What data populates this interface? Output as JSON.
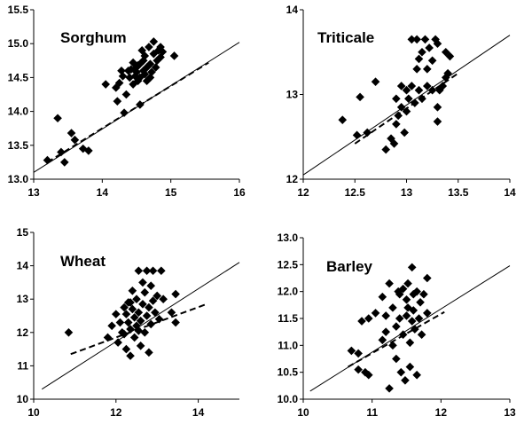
{
  "chart_data": [
    {
      "type": "scatter",
      "title": "Sorghum",
      "xlim": [
        13,
        16
      ],
      "ylim": [
        13.0,
        15.5
      ],
      "xticks": [
        "13",
        "14",
        "15",
        "16"
      ],
      "yticks": [
        "13.0",
        "13.5",
        "14.0",
        "14.5",
        "15.0",
        "15.5"
      ],
      "points": [
        [
          13.2,
          13.28
        ],
        [
          13.35,
          13.9
        ],
        [
          13.4,
          13.4
        ],
        [
          13.45,
          13.25
        ],
        [
          13.55,
          13.68
        ],
        [
          13.6,
          13.58
        ],
        [
          13.72,
          13.45
        ],
        [
          13.8,
          13.42
        ],
        [
          14.05,
          14.4
        ],
        [
          14.2,
          14.35
        ],
        [
          14.22,
          14.15
        ],
        [
          14.25,
          14.42
        ],
        [
          14.28,
          14.6
        ],
        [
          14.3,
          14.52
        ],
        [
          14.32,
          13.98
        ],
        [
          14.35,
          14.25
        ],
        [
          14.38,
          14.6
        ],
        [
          14.4,
          14.5
        ],
        [
          14.42,
          14.62
        ],
        [
          14.45,
          14.72
        ],
        [
          14.45,
          14.4
        ],
        [
          14.48,
          14.52
        ],
        [
          14.5,
          14.58
        ],
        [
          14.5,
          14.65
        ],
        [
          14.52,
          14.45
        ],
        [
          14.55,
          14.7
        ],
        [
          14.55,
          14.5
        ],
        [
          14.55,
          14.1
        ],
        [
          14.58,
          14.9
        ],
        [
          14.6,
          14.75
        ],
        [
          14.6,
          14.6
        ],
        [
          14.62,
          14.55
        ],
        [
          14.62,
          14.82
        ],
        [
          14.65,
          14.65
        ],
        [
          14.65,
          14.45
        ],
        [
          14.68,
          14.95
        ],
        [
          14.7,
          14.7
        ],
        [
          14.7,
          14.5
        ],
        [
          14.72,
          14.58
        ],
        [
          14.75,
          14.85
        ],
        [
          14.75,
          15.03
        ],
        [
          14.78,
          14.65
        ],
        [
          14.8,
          14.75
        ],
        [
          14.82,
          14.9
        ],
        [
          14.85,
          14.95
        ],
        [
          14.85,
          14.8
        ],
        [
          14.88,
          14.88
        ],
        [
          15.05,
          14.82
        ],
        [
          14.52,
          14.68
        ]
      ],
      "regression_line": [
        [
          13.0,
          13.1
        ],
        [
          16.0,
          15.02
        ]
      ],
      "fit_line": [
        [
          13.2,
          13.25
        ],
        [
          15.55,
          14.72
        ]
      ]
    },
    {
      "type": "scatter",
      "title": "Triticale",
      "xlim": [
        12,
        14
      ],
      "ylim": [
        12,
        14
      ],
      "xticks": [
        "12",
        "12.5",
        "13",
        "13.5",
        "14"
      ],
      "yticks": [
        "12",
        "13",
        "14"
      ],
      "points": [
        [
          12.38,
          12.7
        ],
        [
          12.52,
          12.52
        ],
        [
          12.55,
          12.97
        ],
        [
          12.62,
          12.55
        ],
        [
          12.7,
          13.15
        ],
        [
          12.8,
          12.35
        ],
        [
          12.85,
          12.48
        ],
        [
          12.88,
          12.42
        ],
        [
          12.9,
          12.65
        ],
        [
          12.9,
          12.95
        ],
        [
          12.92,
          12.75
        ],
        [
          12.95,
          13.1
        ],
        [
          12.95,
          12.85
        ],
        [
          12.98,
          12.55
        ],
        [
          13.0,
          13.05
        ],
        [
          13.0,
          12.8
        ],
        [
          13.02,
          12.95
        ],
        [
          13.05,
          13.1
        ],
        [
          13.05,
          13.65
        ],
        [
          13.08,
          12.9
        ],
        [
          13.1,
          13.65
        ],
        [
          13.1,
          13.3
        ],
        [
          13.12,
          13.05
        ],
        [
          13.15,
          13.5
        ],
        [
          13.15,
          12.95
        ],
        [
          13.18,
          13.65
        ],
        [
          13.2,
          13.1
        ],
        [
          13.2,
          13.3
        ],
        [
          13.22,
          13.55
        ],
        [
          13.25,
          13.4
        ],
        [
          13.25,
          13.05
        ],
        [
          13.28,
          13.65
        ],
        [
          13.3,
          13.6
        ],
        [
          13.3,
          12.85
        ],
        [
          13.32,
          13.05
        ],
        [
          13.35,
          13.1
        ],
        [
          13.38,
          13.5
        ],
        [
          13.38,
          13.2
        ],
        [
          13.4,
          13.25
        ],
        [
          13.42,
          13.45
        ],
        [
          13.3,
          12.68
        ],
        [
          13.12,
          13.42
        ]
      ],
      "regression_line": [
        [
          12.0,
          12.05
        ],
        [
          14.0,
          13.7
        ]
      ],
      "fit_line": [
        [
          12.5,
          12.42
        ],
        [
          13.5,
          13.25
        ]
      ]
    },
    {
      "type": "scatter",
      "title": "Wheat",
      "xlim": [
        10,
        15
      ],
      "ylim": [
        10,
        15
      ],
      "xticks": [
        "10",
        "12",
        "14"
      ],
      "yticks": [
        "10",
        "11",
        "12",
        "13",
        "14",
        "15"
      ],
      "points": [
        [
          10.85,
          12.0
        ],
        [
          11.8,
          11.85
        ],
        [
          11.9,
          12.2
        ],
        [
          12.0,
          12.55
        ],
        [
          12.05,
          11.7
        ],
        [
          12.1,
          12.3
        ],
        [
          12.15,
          12.0
        ],
        [
          12.2,
          12.75
        ],
        [
          12.2,
          11.95
        ],
        [
          12.25,
          12.55
        ],
        [
          12.25,
          11.5
        ],
        [
          12.3,
          12.3
        ],
        [
          12.3,
          12.9
        ],
        [
          12.35,
          12.1
        ],
        [
          12.35,
          11.3
        ],
        [
          12.4,
          12.7
        ],
        [
          12.4,
          13.25
        ],
        [
          12.45,
          12.45
        ],
        [
          12.45,
          11.85
        ],
        [
          12.5,
          13.0
        ],
        [
          12.5,
          12.2
        ],
        [
          12.55,
          12.6
        ],
        [
          12.55,
          13.85
        ],
        [
          12.6,
          12.35
        ],
        [
          12.6,
          11.6
        ],
        [
          12.65,
          13.5
        ],
        [
          12.65,
          12.85
        ],
        [
          12.7,
          12.0
        ],
        [
          12.7,
          13.2
        ],
        [
          12.75,
          13.85
        ],
        [
          12.75,
          12.5
        ],
        [
          12.8,
          12.75
        ],
        [
          12.8,
          11.4
        ],
        [
          12.85,
          13.4
        ],
        [
          12.85,
          12.25
        ],
        [
          12.9,
          12.95
        ],
        [
          12.9,
          13.85
        ],
        [
          12.95,
          12.6
        ],
        [
          13.0,
          13.1
        ],
        [
          13.05,
          12.4
        ],
        [
          13.1,
          13.85
        ],
        [
          13.15,
          13.0
        ],
        [
          13.35,
          12.6
        ],
        [
          13.45,
          13.15
        ],
        [
          13.45,
          12.3
        ],
        [
          12.35,
          12.9
        ],
        [
          12.55,
          12.05
        ]
      ],
      "regression_line": [
        [
          10.2,
          10.3
        ],
        [
          15.0,
          14.1
        ]
      ],
      "fit_line": [
        [
          10.9,
          11.35
        ],
        [
          14.2,
          12.85
        ]
      ]
    },
    {
      "type": "scatter",
      "title": "Barley",
      "xlim": [
        10,
        13
      ],
      "ylim": [
        10.0,
        13.0
      ],
      "xticks": [
        "10",
        "11",
        "12",
        "13"
      ],
      "yticks": [
        "10.0",
        "10.5",
        "11.0",
        "11.5",
        "12.0",
        "12.5",
        "13.0"
      ],
      "points": [
        [
          10.7,
          10.9
        ],
        [
          10.8,
          10.85
        ],
        [
          10.8,
          10.55
        ],
        [
          10.85,
          11.45
        ],
        [
          10.9,
          10.5
        ],
        [
          10.95,
          11.5
        ],
        [
          10.95,
          10.45
        ],
        [
          11.05,
          11.6
        ],
        [
          11.15,
          11.1
        ],
        [
          11.15,
          11.9
        ],
        [
          11.2,
          11.55
        ],
        [
          11.2,
          11.25
        ],
        [
          11.25,
          12.15
        ],
        [
          11.25,
          10.2
        ],
        [
          11.3,
          11.7
        ],
        [
          11.3,
          11.0
        ],
        [
          11.35,
          11.35
        ],
        [
          11.35,
          10.75
        ],
        [
          11.4,
          11.95
        ],
        [
          11.4,
          11.5
        ],
        [
          11.42,
          10.5
        ],
        [
          11.45,
          12.05
        ],
        [
          11.45,
          11.2
        ],
        [
          11.48,
          10.35
        ],
        [
          11.5,
          11.85
        ],
        [
          11.5,
          11.55
        ],
        [
          11.52,
          12.15
        ],
        [
          11.55,
          11.05
        ],
        [
          11.55,
          10.6
        ],
        [
          11.58,
          11.45
        ],
        [
          11.58,
          12.45
        ],
        [
          11.6,
          11.95
        ],
        [
          11.6,
          11.65
        ],
        [
          11.62,
          11.3
        ],
        [
          11.65,
          12.0
        ],
        [
          11.65,
          10.45
        ],
        [
          11.68,
          11.5
        ],
        [
          11.7,
          11.8
        ],
        [
          11.72,
          11.2
        ],
        [
          11.75,
          11.95
        ],
        [
          11.8,
          11.6
        ],
        [
          11.8,
          12.25
        ],
        [
          11.52,
          11.7
        ],
        [
          11.38,
          12.0
        ]
      ],
      "regression_line": [
        [
          10.1,
          10.15
        ],
        [
          13.0,
          12.48
        ]
      ],
      "fit_line": [
        [
          10.65,
          10.6
        ],
        [
          12.05,
          11.62
        ]
      ]
    }
  ]
}
